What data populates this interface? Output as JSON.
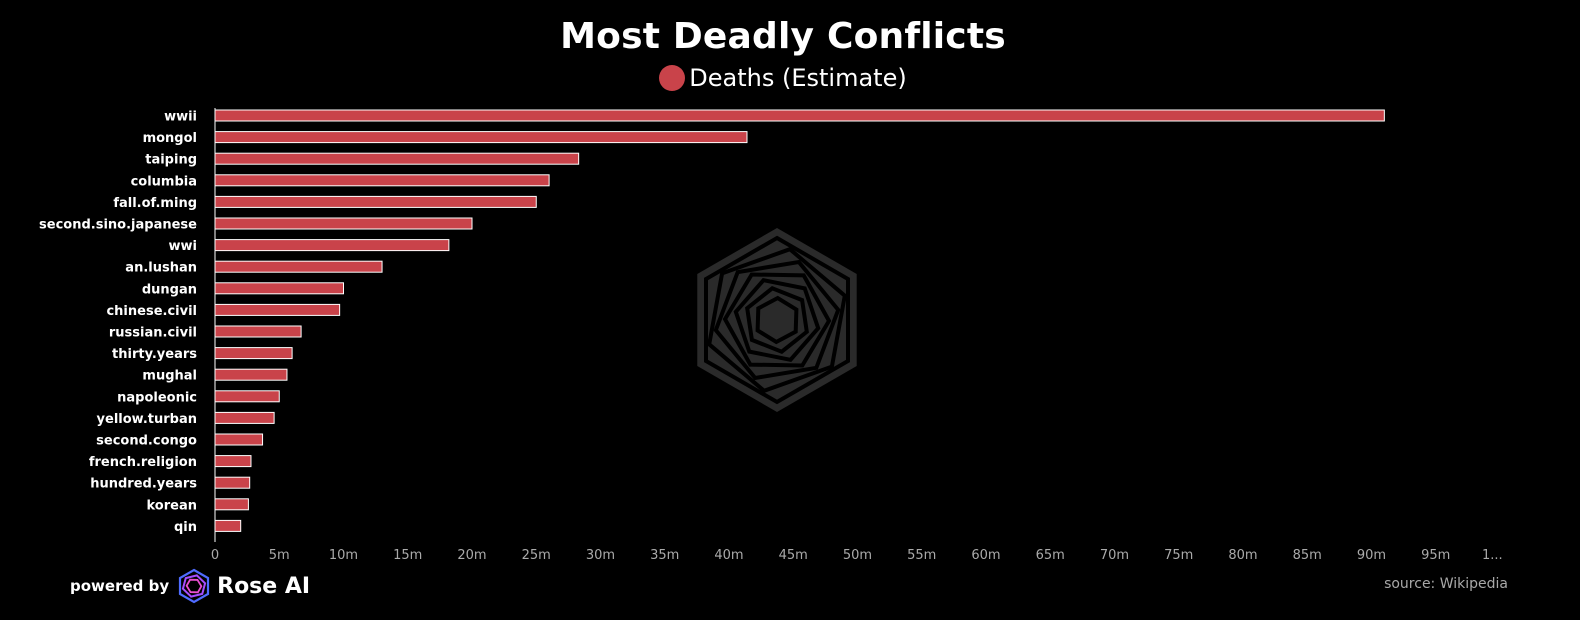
{
  "colors": {
    "background": "#000000",
    "bar_fill": "#c9434a",
    "bar_stroke": "#ffffff",
    "axis": "#ffffff",
    "tick_text": "#aaaaaa",
    "label_text": "#ffffff",
    "watermark": "#2a2a2a"
  },
  "footer": {
    "powered_by": "powered by",
    "brand": "Rose AI",
    "brand_icon": "rose-ai-logo-icon",
    "source": "source: Wikipedia"
  },
  "chart_data": {
    "type": "bar",
    "orientation": "horizontal",
    "title": "Most Deadly Conflicts",
    "legend": [
      {
        "name": "Deaths (Estimate)",
        "color": "#c9434a"
      }
    ],
    "legend_placement": "top-center",
    "grid": false,
    "categories": [
      "wwii",
      "mongol",
      "taiping",
      "columbia",
      "fall.of.ming",
      "second.sino.japanese",
      "wwi",
      "an.lushan",
      "dungan",
      "chinese.civil",
      "russian.civil",
      "thirty.years",
      "mughal",
      "napoleonic",
      "yellow.turban",
      "second.congo",
      "french.religion",
      "hundred.years",
      "korean",
      "qin"
    ],
    "series": [
      {
        "name": "Deaths (Estimate)",
        "values": [
          91000000,
          41400000,
          28300000,
          26000000,
          25000000,
          20000000,
          18200000,
          13000000,
          10000000,
          9700000,
          6700000,
          6000000,
          5600000,
          5000000,
          4600000,
          3700000,
          2800000,
          2700000,
          2600000,
          2000000
        ]
      }
    ],
    "xlim": [
      0,
      100000000
    ],
    "x_ticks": [
      "0",
      "5m",
      "10m",
      "15m",
      "20m",
      "25m",
      "30m",
      "35m",
      "40m",
      "45m",
      "50m",
      "55m",
      "60m",
      "65m",
      "70m",
      "75m",
      "80m",
      "85m",
      "90m",
      "95m",
      "1..."
    ],
    "x_tick_values": [
      0,
      5000000,
      10000000,
      15000000,
      20000000,
      25000000,
      30000000,
      35000000,
      40000000,
      45000000,
      50000000,
      55000000,
      60000000,
      65000000,
      70000000,
      75000000,
      80000000,
      85000000,
      90000000,
      95000000,
      100000000
    ]
  }
}
